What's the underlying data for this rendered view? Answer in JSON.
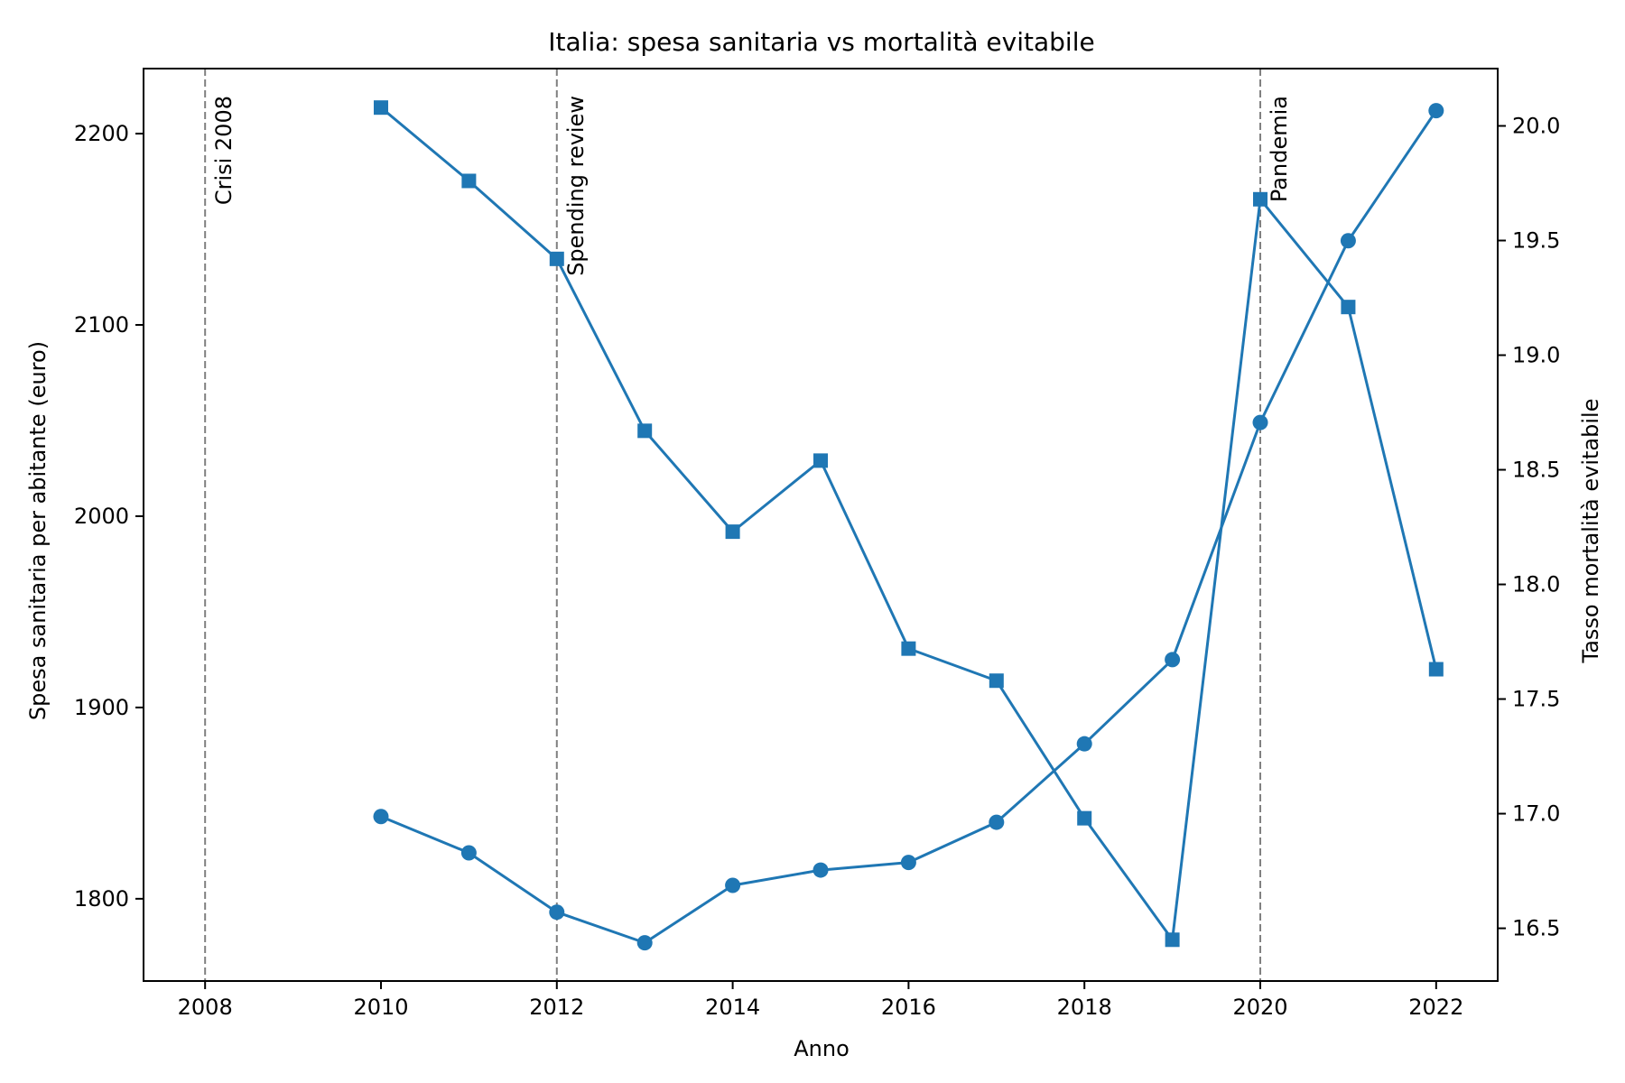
{
  "chart_data": {
    "type": "line",
    "title": "Italia: spesa sanitaria vs mortalità evitabile",
    "xlabel": "Anno",
    "ylabel_left": "Spesa sanitaria per abitante (euro)",
    "ylabel_right": "Tasso mortalità evitabile",
    "xlim": [
      2007.3,
      2022.7
    ],
    "ylim_left": [
      1757,
      2234
    ],
    "ylim_right": [
      16.27,
      20.25
    ],
    "x_ticks": [
      2008,
      2010,
      2012,
      2014,
      2016,
      2018,
      2020,
      2022
    ],
    "y_ticks_left": [
      1800,
      1900,
      2000,
      2100,
      2200
    ],
    "y_ticks_right": [
      16.5,
      17.0,
      17.5,
      18.0,
      18.5,
      19.0,
      19.5,
      20.0
    ],
    "y_tick_labels_right": [
      "16.5",
      "17.0",
      "17.5",
      "18.0",
      "18.5",
      "19.0",
      "19.5",
      "20.0"
    ],
    "grid": false,
    "color": "#1f77b4",
    "series": [
      {
        "axis": "left",
        "marker": "circle",
        "x": [
          2010,
          2011,
          2012,
          2013,
          2014,
          2015,
          2016,
          2017,
          2018,
          2019,
          2020,
          2021,
          2022
        ],
        "y": [
          1843,
          1824,
          1793,
          1777,
          1807,
          1815,
          1819,
          1840,
          1881,
          1925,
          2049,
          2144,
          2212
        ]
      },
      {
        "axis": "right",
        "marker": "square",
        "x": [
          2010,
          2011,
          2012,
          2013,
          2014,
          2015,
          2016,
          2017,
          2018,
          2019,
          2020,
          2021,
          2022
        ],
        "y": [
          20.08,
          19.76,
          19.42,
          18.67,
          18.23,
          18.54,
          17.72,
          17.58,
          16.98,
          16.45,
          19.68,
          19.21,
          17.63
        ]
      }
    ],
    "events": [
      {
        "x": 2008,
        "label": "Crisi 2008"
      },
      {
        "x": 2012,
        "label": "Spending review"
      },
      {
        "x": 2020,
        "label": "Pandemia"
      }
    ]
  }
}
